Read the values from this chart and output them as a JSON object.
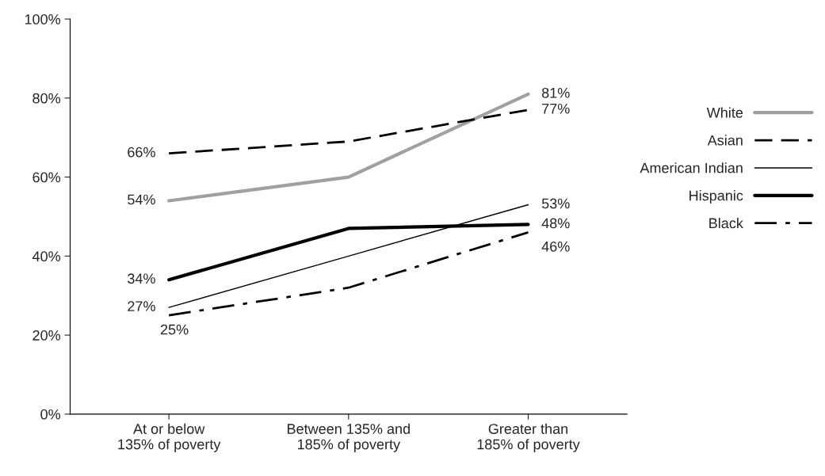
{
  "chart_data": {
    "type": "line",
    "categories": [
      "At or below\n135% of poverty",
      "Between 135% and\n185% of poverty",
      "Greater than\n185% of poverty"
    ],
    "series": [
      {
        "name": "White",
        "color": "#a0a0a0",
        "line_style": "solid",
        "values": [
          54,
          60,
          81
        ],
        "value_labels": [
          "54%",
          null,
          "81%"
        ]
      },
      {
        "name": "Asian",
        "color": "#000000",
        "line_style": "dashed",
        "values": [
          66,
          69,
          77
        ],
        "value_labels": [
          "66%",
          null,
          "77%"
        ]
      },
      {
        "name": "American Indian",
        "color": "#000000",
        "line_style": "solid",
        "values": [
          27,
          40,
          53
        ],
        "value_labels": [
          "27%",
          null,
          "53%"
        ]
      },
      {
        "name": "Hispanic",
        "color": "#000000",
        "line_style": "solid",
        "values": [
          34,
          47,
          48
        ],
        "value_labels": [
          "34%",
          null,
          "48%"
        ]
      },
      {
        "name": "Black",
        "color": "#000000",
        "line_style": "dashdot",
        "values": [
          25,
          32,
          46
        ],
        "value_labels": [
          "25%",
          null,
          "46%"
        ]
      }
    ],
    "ylim": [
      0,
      100
    ],
    "yticks": [
      {
        "value": 0,
        "label": "0%"
      },
      {
        "value": 20,
        "label": "20%"
      },
      {
        "value": 40,
        "label": "40%"
      },
      {
        "value": 60,
        "label": "60%"
      },
      {
        "value": 80,
        "label": "80%"
      },
      {
        "value": 100,
        "label": "100%"
      }
    ],
    "grid": false,
    "marker": "none",
    "legend": "right"
  }
}
